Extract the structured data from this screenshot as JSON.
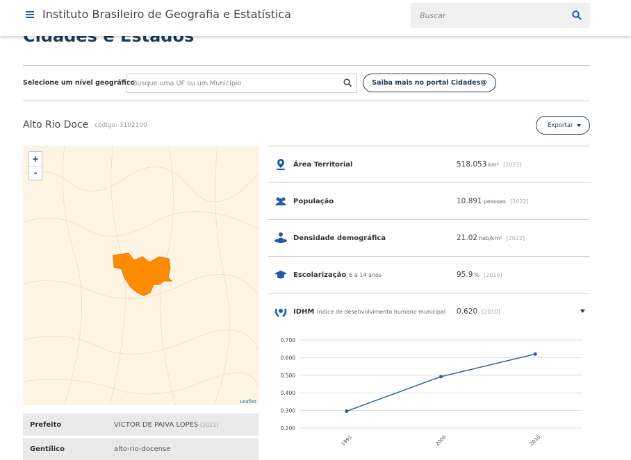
{
  "header": {
    "title": "Instituto Brasileiro de Geografia e Estatística",
    "search_placeholder": "Buscar"
  },
  "page": {
    "heading": "Cidades e Estados"
  },
  "selector": {
    "label": "Selecione um nível geográfico",
    "input_placeholder": "Busque uma UF ou um Município",
    "button": "Saiba mais no portal Cidades@"
  },
  "place": {
    "name": "Alto Rio Doce",
    "code": "código: 3102100",
    "export": "Exportar"
  },
  "map": {
    "zoom_in": "+",
    "zoom_out": "-",
    "attribution": "Leaflet"
  },
  "indicators": [
    {
      "label": "Área Territorial",
      "value": "518.053",
      "unit": "km²",
      "year": "[2022]"
    },
    {
      "label": "População",
      "value": "10.891",
      "unit": "pessoas",
      "year": "[2022]"
    },
    {
      "label": "Densidade demográfica",
      "value": "21.02",
      "unit": "hab/km²",
      "year": "[2022]"
    },
    {
      "label": "Escolarização",
      "sublabel": "6 a 14 anos",
      "value": "95.9",
      "unit": "%",
      "year": "[2010]"
    },
    {
      "label": "IDHM",
      "sublabel": "Índice de desenvolvimento humano municipal",
      "value": "0.620",
      "year": "[2010]"
    }
  ],
  "info_table": {
    "rows": [
      [
        "Prefeito",
        "VICTOR DE PAIVA LOPES",
        "[2021]"
      ],
      [
        "Gentílico",
        "alto-rio-docense"
      ]
    ]
  },
  "chart_data": {
    "type": "line",
    "categories": [
      "1991",
      "2000",
      "2010"
    ],
    "series": [
      {
        "name": "IDHM",
        "color": "#2b5c9e",
        "values": [
          0.296,
          0.492,
          0.62
        ]
      }
    ],
    "ylim": [
      0.2,
      0.7
    ],
    "yticks": [
      {
        "value": 0.2,
        "label": "0.200"
      },
      {
        "value": 0.3,
        "label": "0.300"
      },
      {
        "value": 0.4,
        "label": "0.400"
      },
      {
        "value": 0.5,
        "label": "0.500"
      },
      {
        "value": 0.6,
        "label": "0.600"
      },
      {
        "value": 0.7,
        "label": "0.700"
      }
    ],
    "grid": true
  }
}
